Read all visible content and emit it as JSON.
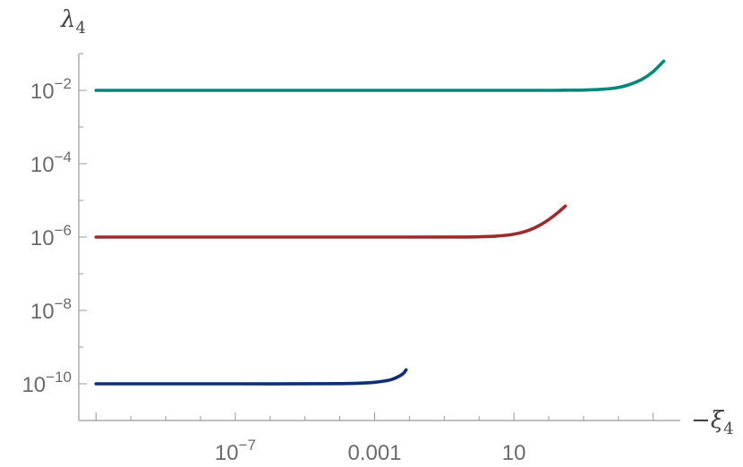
{
  "chart_data": {
    "type": "line",
    "x_scale": "log",
    "y_scale": "log",
    "xlabel": "−ξ",
    "xlabel_sub": "4",
    "ylabel": "λ",
    "ylabel_sub": "4",
    "xlim": [
      3.2e-12,
      600000.0
    ],
    "ylim": [
      1e-11,
      0.1
    ],
    "x_ticks": [
      {
        "value": 1e-07,
        "base": "10",
        "exp": "−7"
      },
      {
        "value": 0.001,
        "text": "0.001"
      },
      {
        "value": 10,
        "text": "10"
      }
    ],
    "y_ticks": [
      {
        "value": 0.01,
        "base": "10",
        "exp": "−2"
      },
      {
        "value": 0.0001,
        "base": "10",
        "exp": "−4"
      },
      {
        "value": 1e-06,
        "base": "10",
        "exp": "−6"
      },
      {
        "value": 1e-08,
        "base": "10",
        "exp": "−8"
      },
      {
        "value": 1e-10,
        "base": "10",
        "exp": "−10"
      }
    ],
    "grid": false,
    "series": [
      {
        "color": "#00897b",
        "x": [
          1e-11,
          1e-06,
          1,
          10,
          30,
          100,
          300,
          1000,
          3000,
          6000,
          10000,
          20000,
          50000,
          100000,
          200000
        ],
        "y": [
          0.01,
          0.01,
          0.01,
          0.01,
          0.01,
          0.01,
          0.0101,
          0.0102,
          0.0106,
          0.0112,
          0.012,
          0.0142,
          0.0205,
          0.0325,
          0.0625
        ]
      },
      {
        "color": "#9e2a2b",
        "x": [
          1e-11,
          1e-06,
          0.01,
          0.1,
          1,
          3,
          10,
          30,
          60,
          100,
          200,
          300
        ],
        "y": [
          1e-06,
          1e-06,
          1e-06,
          1.002e-06,
          1.02e-06,
          1.06e-06,
          1.2e-06,
          1.6e-06,
          2.2e-06,
          3e-06,
          5e-06,
          7e-06
        ]
      },
      {
        "color": "#0d2f77",
        "x": [
          1e-11,
          1e-07,
          1e-05,
          0.0001,
          0.0003,
          0.001,
          0.002,
          0.003,
          0.005,
          0.007,
          0.008
        ],
        "y": [
          1e-10,
          1e-10,
          1.001e-10,
          1.01e-10,
          1.03e-10,
          1.1e-10,
          1.2e-10,
          1.3e-10,
          1.6e-10,
          2e-10,
          2.4e-10
        ]
      }
    ]
  }
}
